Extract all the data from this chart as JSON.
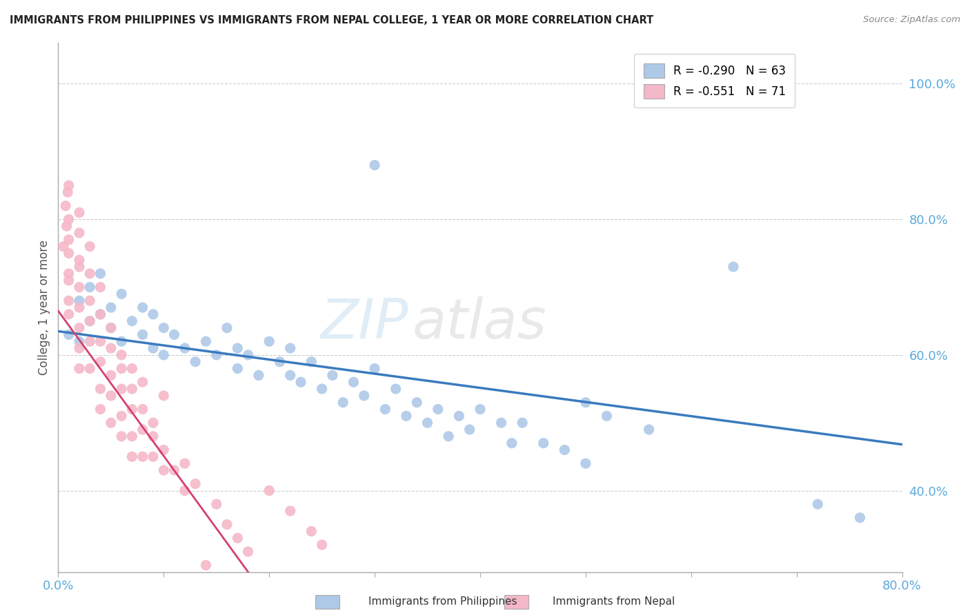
{
  "title": "IMMIGRANTS FROM PHILIPPINES VS IMMIGRANTS FROM NEPAL COLLEGE, 1 YEAR OR MORE CORRELATION CHART",
  "source_text": "Source: ZipAtlas.com",
  "ylabel": "College, 1 year or more",
  "xlim": [
    0.0,
    0.8
  ],
  "ylim": [
    0.28,
    1.06
  ],
  "xtick_positions": [
    0.0,
    0.1,
    0.2,
    0.3,
    0.4,
    0.5,
    0.6,
    0.7,
    0.8
  ],
  "xticklabels": [
    "0.0%",
    "",
    "",
    "",
    "",
    "",
    "",
    "",
    "80.0%"
  ],
  "ytick_positions": [
    0.4,
    0.6,
    0.8,
    1.0
  ],
  "yticklabels": [
    "40.0%",
    "60.0%",
    "80.0%",
    "100.0%"
  ],
  "watermark_zip": "ZIP",
  "watermark_atlas": "atlas",
  "philippines_color": "#aec9e8",
  "nepal_color": "#f5b8c8",
  "philippines_line_color": "#3a7abf",
  "nepal_line_color": "#d44070",
  "philippines_line_x0": 0.0,
  "philippines_line_y0": 0.635,
  "philippines_line_x1": 0.8,
  "philippines_line_y1": 0.468,
  "nepal_line_x0": 0.0,
  "nepal_line_y0": 0.665,
  "nepal_line_x1": 0.18,
  "nepal_line_y1": 0.28,
  "philippines_scatter_x": [
    0.01,
    0.02,
    0.02,
    0.03,
    0.03,
    0.04,
    0.04,
    0.05,
    0.05,
    0.06,
    0.06,
    0.07,
    0.08,
    0.08,
    0.09,
    0.09,
    0.1,
    0.1,
    0.11,
    0.12,
    0.13,
    0.14,
    0.15,
    0.16,
    0.17,
    0.17,
    0.18,
    0.19,
    0.2,
    0.21,
    0.22,
    0.22,
    0.23,
    0.24,
    0.25,
    0.26,
    0.27,
    0.28,
    0.29,
    0.3,
    0.31,
    0.32,
    0.33,
    0.34,
    0.35,
    0.36,
    0.37,
    0.38,
    0.39,
    0.4,
    0.42,
    0.43,
    0.44,
    0.46,
    0.48,
    0.5,
    0.52,
    0.3,
    0.56,
    0.64,
    0.72,
    0.76,
    0.5
  ],
  "philippines_scatter_y": [
    0.63,
    0.68,
    0.62,
    0.65,
    0.7,
    0.66,
    0.72,
    0.64,
    0.67,
    0.69,
    0.62,
    0.65,
    0.67,
    0.63,
    0.61,
    0.66,
    0.64,
    0.6,
    0.63,
    0.61,
    0.59,
    0.62,
    0.6,
    0.64,
    0.58,
    0.61,
    0.6,
    0.57,
    0.62,
    0.59,
    0.57,
    0.61,
    0.56,
    0.59,
    0.55,
    0.57,
    0.53,
    0.56,
    0.54,
    0.58,
    0.52,
    0.55,
    0.51,
    0.53,
    0.5,
    0.52,
    0.48,
    0.51,
    0.49,
    0.52,
    0.5,
    0.47,
    0.5,
    0.47,
    0.46,
    0.53,
    0.51,
    0.88,
    0.49,
    0.73,
    0.38,
    0.36,
    0.44
  ],
  "nepal_scatter_x": [
    0.005,
    0.007,
    0.008,
    0.009,
    0.01,
    0.01,
    0.01,
    0.01,
    0.01,
    0.01,
    0.01,
    0.01,
    0.02,
    0.02,
    0.02,
    0.02,
    0.02,
    0.02,
    0.02,
    0.02,
    0.02,
    0.03,
    0.03,
    0.03,
    0.03,
    0.03,
    0.03,
    0.04,
    0.04,
    0.04,
    0.04,
    0.04,
    0.04,
    0.05,
    0.05,
    0.05,
    0.05,
    0.05,
    0.06,
    0.06,
    0.06,
    0.06,
    0.07,
    0.07,
    0.07,
    0.07,
    0.08,
    0.08,
    0.08,
    0.09,
    0.09,
    0.1,
    0.1,
    0.11,
    0.12,
    0.12,
    0.13,
    0.14,
    0.15,
    0.16,
    0.17,
    0.18,
    0.2,
    0.22,
    0.24,
    0.25,
    0.08,
    0.1,
    0.06,
    0.07,
    0.09
  ],
  "nepal_scatter_y": [
    0.76,
    0.82,
    0.79,
    0.84,
    0.77,
    0.8,
    0.85,
    0.72,
    0.75,
    0.68,
    0.71,
    0.66,
    0.74,
    0.78,
    0.81,
    0.7,
    0.64,
    0.67,
    0.73,
    0.61,
    0.58,
    0.76,
    0.72,
    0.68,
    0.65,
    0.62,
    0.58,
    0.7,
    0.66,
    0.62,
    0.59,
    0.55,
    0.52,
    0.64,
    0.61,
    0.57,
    0.54,
    0.5,
    0.58,
    0.55,
    0.51,
    0.48,
    0.55,
    0.52,
    0.48,
    0.45,
    0.52,
    0.49,
    0.45,
    0.48,
    0.45,
    0.46,
    0.43,
    0.43,
    0.4,
    0.44,
    0.41,
    0.29,
    0.38,
    0.35,
    0.33,
    0.31,
    0.4,
    0.37,
    0.34,
    0.32,
    0.56,
    0.54,
    0.6,
    0.58,
    0.5
  ]
}
